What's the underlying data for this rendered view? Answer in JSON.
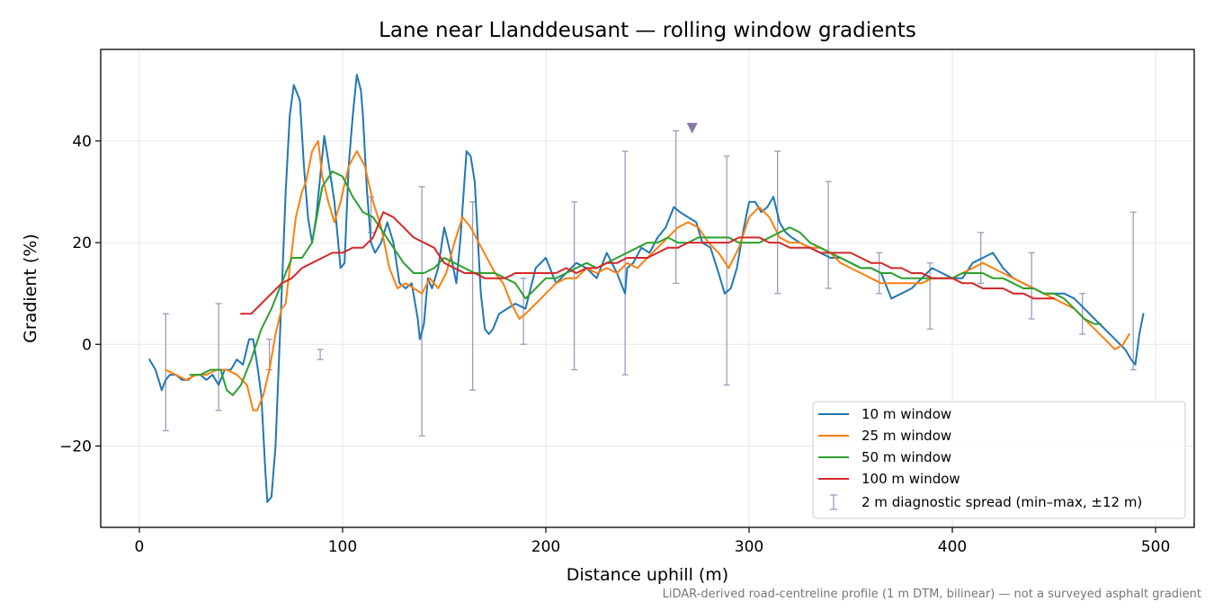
{
  "chart_data": {
    "type": "line",
    "title": "Lane near Llanddeusant — rolling window gradients",
    "xlabel": "Distance uphill (m)",
    "ylabel": "Gradient (%)",
    "footnote": "LiDAR-derived road-centreline profile (1 m DTM, bilinear) — not a surveyed asphalt gradient",
    "xlim": [
      -19,
      519
    ],
    "ylim": [
      -36,
      58
    ],
    "xticks": [
      0,
      100,
      200,
      300,
      400,
      500
    ],
    "yticks": [
      -20,
      0,
      20,
      40
    ],
    "grid": true,
    "legend_position": "lower right",
    "series": [
      {
        "name": "10 m window",
        "color": "#1f77b4",
        "x": [
          5,
          8,
          11,
          13,
          15,
          18,
          21,
          24,
          27,
          30,
          33,
          36,
          39,
          42,
          45,
          48,
          51,
          54,
          56,
          58,
          60,
          62,
          63,
          65,
          67,
          70,
          72,
          74,
          76,
          77,
          79,
          81,
          83,
          85,
          87,
          89,
          91,
          93,
          96,
          99,
          101,
          103,
          105,
          107,
          109,
          110,
          112,
          114,
          116,
          119,
          122,
          125,
          128,
          131,
          134,
          137,
          138,
          140,
          142,
          144,
          147,
          150,
          153,
          156,
          158,
          161,
          163,
          165,
          168,
          170,
          172,
          174,
          177,
          181,
          185,
          190,
          195,
          200,
          205,
          210,
          215,
          220,
          225,
          230,
          235,
          239,
          240,
          243,
          247,
          251,
          255,
          259,
          263,
          266,
          270,
          274,
          277,
          281,
          285,
          288,
          291,
          294,
          297,
          300,
          303,
          306,
          309,
          312,
          315,
          318,
          321,
          325,
          330,
          335,
          340,
          345,
          350,
          355,
          360,
          365,
          370,
          375,
          380,
          385,
          390,
          395,
          400,
          405,
          410,
          415,
          420,
          425,
          430,
          435,
          440,
          445,
          450,
          455,
          460,
          465,
          470,
          475,
          480,
          485,
          488,
          490,
          492,
          494
        ],
        "values": [
          -3,
          -5,
          -9,
          -7,
          -6,
          -6,
          -7,
          -7,
          -6,
          -6,
          -7,
          -6,
          -8,
          -5,
          -5,
          -3,
          -4,
          1,
          1,
          -4,
          -10,
          -25,
          -31,
          -30,
          -20,
          10,
          30,
          45,
          51,
          50,
          48,
          35,
          25,
          20,
          25,
          33,
          41,
          36,
          28,
          15,
          16,
          35,
          45,
          53,
          50,
          45,
          30,
          20,
          18,
          20,
          24,
          20,
          12,
          11,
          12,
          5,
          1,
          4,
          13,
          11,
          15,
          23,
          18,
          12,
          21,
          38,
          37,
          32,
          10,
          3,
          2,
          3,
          6,
          7,
          8,
          7,
          15,
          17,
          12,
          14,
          16,
          15,
          13,
          18,
          14,
          10,
          15,
          16,
          19,
          18,
          21,
          23,
          27,
          26,
          25,
          24,
          20,
          19,
          14,
          10,
          11,
          15,
          22,
          28,
          28,
          26,
          27,
          29,
          24,
          22,
          21,
          20,
          19,
          18,
          17,
          17,
          16,
          15,
          15,
          14,
          9,
          10,
          11,
          13,
          15,
          14,
          13,
          13,
          16,
          17,
          18,
          15,
          13,
          12,
          11,
          10,
          10,
          10,
          9,
          7,
          5,
          3,
          1,
          -1,
          -3,
          -4,
          2,
          6
        ]
      },
      {
        "name": "25 m window",
        "color": "#ff7f0e",
        "x": [
          13,
          18,
          23,
          28,
          33,
          38,
          43,
          48,
          53,
          56,
          58,
          61,
          64,
          67,
          70,
          72,
          74,
          77,
          80,
          82,
          85,
          88,
          90,
          93,
          96,
          99,
          103,
          107,
          111,
          115,
          119,
          123,
          127,
          131,
          135,
          139,
          143,
          147,
          151,
          155,
          159,
          163,
          167,
          171,
          175,
          179,
          183,
          187,
          190,
          195,
          200,
          205,
          210,
          215,
          220,
          225,
          230,
          235,
          240,
          245,
          250,
          255,
          260,
          265,
          270,
          275,
          280,
          285,
          290,
          295,
          300,
          305,
          310,
          315,
          320,
          325,
          330,
          335,
          340,
          345,
          350,
          355,
          360,
          365,
          370,
          375,
          380,
          385,
          390,
          395,
          400,
          405,
          410,
          415,
          420,
          425,
          430,
          435,
          440,
          445,
          450,
          455,
          460,
          465,
          470,
          475,
          480,
          484,
          487
        ],
        "values": [
          -5,
          -6,
          -7,
          -6,
          -6,
          -5,
          -5,
          -6,
          -8,
          -13,
          -13,
          -10,
          -5,
          2,
          7,
          8,
          15,
          25,
          30,
          32,
          38,
          40,
          33,
          28,
          24,
          28,
          35,
          38,
          35,
          28,
          23,
          15,
          11,
          12,
          11,
          10,
          13,
          11,
          14,
          20,
          25,
          23,
          20,
          17,
          14,
          12,
          8,
          5,
          6,
          8,
          10,
          12,
          13,
          13,
          15,
          14,
          15,
          14,
          16,
          15,
          17,
          19,
          21,
          23,
          24,
          23,
          20,
          18,
          15,
          19,
          25,
          27,
          25,
          21,
          20,
          20,
          19,
          19,
          18,
          16,
          15,
          14,
          13,
          12,
          12,
          12,
          12,
          12,
          13,
          13,
          13,
          14,
          15,
          16,
          15,
          14,
          13,
          12,
          11,
          10,
          9,
          8,
          7,
          5,
          3,
          1,
          -1,
          0,
          2
        ]
      },
      {
        "name": "50 m window",
        "color": "#2ca02c",
        "x": [
          25,
          30,
          35,
          40,
          43,
          46,
          50,
          55,
          60,
          65,
          70,
          75,
          80,
          85,
          90,
          95,
          100,
          105,
          110,
          115,
          120,
          125,
          130,
          135,
          140,
          145,
          150,
          155,
          160,
          165,
          170,
          175,
          180,
          185,
          190,
          195,
          200,
          205,
          210,
          215,
          220,
          225,
          230,
          235,
          240,
          245,
          250,
          255,
          260,
          265,
          270,
          275,
          280,
          285,
          290,
          295,
          300,
          305,
          310,
          315,
          320,
          325,
          330,
          335,
          340,
          345,
          350,
          355,
          360,
          365,
          370,
          375,
          380,
          385,
          390,
          395,
          400,
          405,
          410,
          415,
          420,
          425,
          430,
          435,
          440,
          445,
          450,
          455,
          460,
          465,
          470,
          473
        ],
        "values": [
          -6,
          -6,
          -5,
          -5,
          -9,
          -10,
          -8,
          -3,
          3,
          7,
          12,
          17,
          17,
          20,
          31,
          34,
          33,
          29,
          26,
          25,
          22,
          19,
          16,
          14,
          14,
          15,
          17,
          16,
          15,
          14,
          14,
          14,
          13,
          12,
          9,
          11,
          13,
          13,
          14,
          15,
          16,
          15,
          16,
          17,
          18,
          19,
          20,
          20,
          21,
          20,
          20,
          21,
          21,
          21,
          21,
          20,
          20,
          20,
          21,
          22,
          23,
          22,
          20,
          19,
          18,
          17,
          16,
          15,
          15,
          14,
          14,
          13,
          13,
          13,
          13,
          13,
          13,
          14,
          14,
          14,
          13,
          13,
          12,
          11,
          11,
          10,
          10,
          9,
          7,
          5,
          4,
          4
        ]
      },
      {
        "name": "100 m window",
        "color": "#d62728",
        "x": [
          50,
          55,
          60,
          65,
          70,
          75,
          80,
          85,
          90,
          95,
          100,
          105,
          110,
          115,
          120,
          125,
          130,
          135,
          140,
          145,
          150,
          155,
          160,
          165,
          170,
          175,
          180,
          185,
          190,
          195,
          200,
          205,
          210,
          215,
          220,
          225,
          230,
          235,
          240,
          245,
          250,
          255,
          260,
          265,
          270,
          275,
          280,
          285,
          290,
          295,
          300,
          305,
          310,
          315,
          320,
          325,
          330,
          335,
          340,
          345,
          350,
          355,
          360,
          365,
          370,
          375,
          380,
          385,
          390,
          395,
          400,
          405,
          410,
          415,
          420,
          425,
          430,
          435,
          440,
          445,
          450
        ],
        "values": [
          6,
          6,
          8,
          10,
          12,
          13,
          15,
          16,
          17,
          18,
          18,
          19,
          19,
          21,
          26,
          25,
          23,
          21,
          20,
          19,
          16,
          15,
          14,
          14,
          13,
          13,
          13,
          14,
          14,
          14,
          14,
          14,
          15,
          14,
          15,
          15,
          16,
          16,
          17,
          17,
          17,
          18,
          19,
          19,
          20,
          20,
          20,
          20,
          20,
          21,
          21,
          21,
          20,
          20,
          19,
          19,
          19,
          18,
          18,
          18,
          18,
          17,
          16,
          16,
          15,
          15,
          14,
          14,
          13,
          13,
          13,
          12,
          12,
          11,
          11,
          11,
          10,
          10,
          9,
          9,
          9
        ]
      }
    ],
    "diagnostic_spread": {
      "name": "2 m diagnostic spread (min–max, ±12 m)",
      "color": "#9c9cc0",
      "bars": [
        {
          "x": 13,
          "low": -17,
          "high": 6
        },
        {
          "x": 39,
          "low": -13,
          "high": 8
        },
        {
          "x": 64,
          "low": -5,
          "high": 1
        },
        {
          "x": 89,
          "low": -3,
          "high": -1
        },
        {
          "x": 114,
          "low": 22,
          "high": 29
        },
        {
          "x": 139,
          "low": -18,
          "high": 31
        },
        {
          "x": 164,
          "low": -9,
          "high": 28
        },
        {
          "x": 189,
          "low": 0,
          "high": 13
        },
        {
          "x": 214,
          "low": -5,
          "high": 28
        },
        {
          "x": 239,
          "low": -6,
          "high": 38
        },
        {
          "x": 264,
          "low": 12,
          "high": 42
        },
        {
          "x": 289,
          "low": -8,
          "high": 37
        },
        {
          "x": 314,
          "low": 10,
          "high": 38
        },
        {
          "x": 339,
          "low": 11,
          "high": 32
        },
        {
          "x": 364,
          "low": 10,
          "high": 18
        },
        {
          "x": 389,
          "low": 3,
          "high": 16
        },
        {
          "x": 414,
          "low": 12,
          "high": 22
        },
        {
          "x": 439,
          "low": 5,
          "high": 18
        },
        {
          "x": 464,
          "low": 2,
          "high": 10
        },
        {
          "x": 489,
          "low": -5,
          "high": 26
        }
      ]
    },
    "marker": {
      "x": 272,
      "y": 42.5,
      "symbol": "triangle-down",
      "color": "#8878a8"
    }
  }
}
